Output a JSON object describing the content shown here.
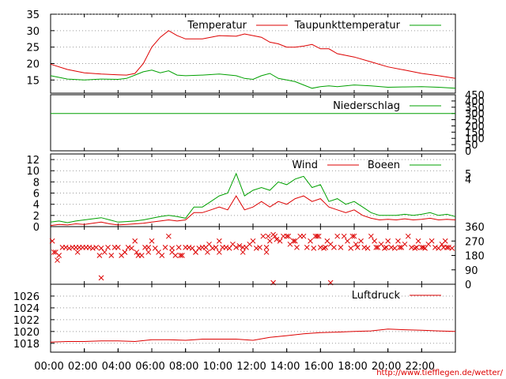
{
  "source_url": "http://www.tiefflegen.de/wetter/",
  "time_ticks": [
    "00:00",
    "02:00",
    "04:00",
    "06:00",
    "08:00",
    "10:00",
    "12:00",
    "14:00",
    "16:00",
    "18:00",
    "20:00",
    "22:00"
  ],
  "colors": {
    "red": "#dd0000",
    "green": "#00a000",
    "grid": "#999999",
    "axis": "#000000"
  },
  "chart_data": [
    {
      "type": "line",
      "panel": "temperature",
      "ylim": [
        11,
        35
      ],
      "yticks": [
        15,
        20,
        25,
        30,
        35
      ],
      "xlim": [
        0,
        24
      ],
      "legend_placement": "top-right",
      "series": [
        {
          "name": "Temperatur",
          "color": "red",
          "x": [
            0,
            1,
            2,
            3,
            4,
            4.5,
            5,
            5.5,
            6,
            6.5,
            7,
            7.5,
            8,
            9,
            10,
            11,
            11.5,
            12,
            12.5,
            13,
            13.5,
            14,
            14.5,
            15,
            15.5,
            16,
            16.5,
            17,
            18,
            19,
            20,
            21,
            22,
            23,
            24
          ],
          "y": [
            19.8,
            18.2,
            17.2,
            16.8,
            16.6,
            16.5,
            17,
            20,
            25,
            28,
            30,
            28.5,
            27.5,
            27.5,
            28.5,
            28.3,
            29,
            28.5,
            28,
            26.5,
            26,
            25,
            25,
            25.3,
            25.8,
            24.5,
            24.5,
            23,
            22,
            20.5,
            19,
            18,
            17,
            16.3,
            15.5
          ]
        },
        {
          "name": "Taupunkttemperatur",
          "color": "green",
          "x": [
            0,
            1,
            2,
            3,
            4,
            4.5,
            5,
            5.5,
            6,
            6.5,
            7,
            7.5,
            8,
            9,
            10,
            11,
            11.5,
            12,
            12.5,
            13,
            13.5,
            14,
            14.5,
            15,
            15.5,
            16,
            16.5,
            17,
            18,
            19,
            20,
            21,
            22,
            23,
            24
          ],
          "y": [
            16.3,
            15.3,
            15,
            15.3,
            15.2,
            15.5,
            16.5,
            17.5,
            18,
            17.2,
            17.8,
            16.5,
            16.3,
            16.5,
            16.8,
            16.3,
            15.5,
            15.2,
            16.3,
            17,
            15.5,
            15,
            14.5,
            13.5,
            12.5,
            13,
            13.2,
            13,
            13.5,
            13.2,
            12.8,
            12.9,
            13,
            12.8,
            12.5
          ]
        }
      ]
    },
    {
      "type": "line",
      "panel": "precipitation",
      "ylim": [
        0,
        450
      ],
      "yticks": [
        0,
        50,
        100,
        150,
        200,
        250,
        300,
        350,
        400,
        450
      ],
      "xlim": [
        0,
        24
      ],
      "legend_placement": "top-right",
      "series": [
        {
          "name": "Niederschlag",
          "color": "green",
          "x": [
            0,
            24
          ],
          "y": [
            300,
            300
          ]
        }
      ]
    },
    {
      "type": "line",
      "panel": "wind",
      "ylim": [
        0,
        13
      ],
      "yticks": [
        0,
        2,
        4,
        6,
        8,
        10,
        12
      ],
      "right_ticks": [
        4,
        5
      ],
      "xlim": [
        0,
        24
      ],
      "legend_placement": "top-right",
      "series": [
        {
          "name": "Wind",
          "color": "red",
          "x": [
            0,
            0.5,
            1,
            1.5,
            2,
            2.5,
            3,
            3.5,
            4,
            4.5,
            5,
            5.5,
            6,
            6.5,
            7,
            7.5,
            8,
            8.5,
            9,
            9.5,
            10,
            10.5,
            11,
            11.5,
            12,
            12.5,
            13,
            13.5,
            14,
            14.5,
            15,
            15.5,
            16,
            16.5,
            17,
            17.5,
            18,
            18.5,
            19,
            19.5,
            20,
            20.5,
            21,
            21.5,
            22,
            22.5,
            23,
            23.5,
            24
          ],
          "y": [
            0.2,
            0.4,
            0.3,
            0.5,
            0.4,
            0.6,
            0.8,
            0.5,
            0.3,
            0.4,
            0.5,
            0.6,
            0.8,
            1.0,
            1.2,
            1.0,
            1.2,
            2.5,
            2.5,
            3.0,
            3.5,
            3.0,
            5.5,
            3.0,
            3.5,
            4.5,
            3.5,
            4.5,
            4.0,
            5.0,
            5.5,
            4.5,
            5.0,
            3.5,
            3.0,
            2.5,
            3.0,
            2.0,
            1.5,
            1.2,
            1.3,
            1.2,
            1.4,
            1.2,
            1.3,
            1.5,
            1.2,
            1.3,
            1.2
          ]
        },
        {
          "name": "Boeen",
          "color": "green",
          "x": [
            0,
            0.5,
            1,
            1.5,
            2,
            2.5,
            3,
            3.5,
            4,
            4.5,
            5,
            5.5,
            6,
            6.5,
            7,
            7.5,
            8,
            8.5,
            9,
            9.5,
            10,
            10.5,
            11,
            11.5,
            12,
            12.5,
            13,
            13.5,
            14,
            14.5,
            15,
            15.5,
            16,
            16.5,
            17,
            17.5,
            18,
            18.5,
            19,
            19.5,
            20,
            20.5,
            21,
            21.5,
            22,
            22.5,
            23,
            23.5,
            24
          ],
          "y": [
            0.8,
            1.0,
            0.7,
            1.0,
            1.2,
            1.4,
            1.6,
            1.2,
            0.8,
            0.9,
            1.0,
            1.2,
            1.5,
            1.8,
            2.0,
            1.8,
            1.5,
            3.5,
            3.5,
            4.5,
            5.5,
            6.0,
            9.5,
            5.5,
            6.5,
            7.0,
            6.5,
            8.0,
            7.5,
            8.5,
            9.0,
            7.0,
            7.5,
            4.5,
            5.0,
            4.0,
            4.5,
            3.5,
            2.5,
            2.0,
            2.0,
            2.0,
            2.2,
            2.0,
            2.2,
            2.5,
            2.0,
            2.2,
            1.8
          ]
        }
      ]
    },
    {
      "type": "scatter",
      "panel": "wind-direction",
      "ylim": [
        0,
        360
      ],
      "yticks": [
        0,
        90,
        180,
        270,
        360
      ],
      "xlim": [
        0,
        24
      ],
      "color": "red",
      "x": [
        0.1,
        0.3,
        0.5,
        0.7,
        0.9,
        1.1,
        1.3,
        1.5,
        1.7,
        1.9,
        2.1,
        2.3,
        2.5,
        2.7,
        2.9,
        3.0,
        3.2,
        3.4,
        3.6,
        3.8,
        4.0,
        4.2,
        4.4,
        4.6,
        4.8,
        5.0,
        5.2,
        5.4,
        5.6,
        5.8,
        6.0,
        6.2,
        6.4,
        6.6,
        6.8,
        7.0,
        7.2,
        7.4,
        7.6,
        7.8,
        8.0,
        8.2,
        8.4,
        8.6,
        8.8,
        9.0,
        9.2,
        9.4,
        9.6,
        9.8,
        10.0,
        10.2,
        10.4,
        10.6,
        10.8,
        11.0,
        11.2,
        11.4,
        11.6,
        11.8,
        12.0,
        12.2,
        12.4,
        12.6,
        12.8,
        13.0,
        13.2,
        13.4,
        13.6,
        13.8,
        14.0,
        14.2,
        14.4,
        14.6,
        14.8,
        15.0,
        15.2,
        15.4,
        15.6,
        15.8,
        16.0,
        16.2,
        16.4,
        16.6,
        16.8,
        17.0,
        17.2,
        17.4,
        17.6,
        17.8,
        18.0,
        18.2,
        18.4,
        18.6,
        18.8,
        19.0,
        19.2,
        19.4,
        19.6,
        19.8,
        20.0,
        20.2,
        20.4,
        20.6,
        20.8,
        21.0,
        21.2,
        21.4,
        21.6,
        21.8,
        22.0,
        22.2,
        22.4,
        22.6,
        22.8,
        23.0,
        23.2,
        23.4,
        23.6,
        23.8,
        0.2,
        0.4,
        1.6,
        3.0,
        4.4,
        5.8,
        7.2,
        8.6,
        10.0,
        11.4,
        12.8,
        13.2,
        14.1,
        15.7,
        16.6,
        17.9,
        19.3,
        20.7,
        22.1,
        23.5,
        13.3,
        15.9,
        12.9,
        14.5,
        16.3,
        18.1,
        19.9,
        21.7,
        23.3,
        5.1,
        7.7,
        9.3
      ],
      "y": [
        270,
        200,
        180,
        230,
        230,
        225,
        230,
        230,
        230,
        230,
        230,
        230,
        225,
        230,
        180,
        225,
        200,
        230,
        180,
        230,
        230,
        180,
        200,
        230,
        225,
        270,
        180,
        180,
        230,
        230,
        270,
        225,
        200,
        180,
        230,
        300,
        225,
        180,
        230,
        180,
        230,
        230,
        225,
        200,
        225,
        230,
        230,
        250,
        225,
        230,
        270,
        230,
        230,
        225,
        250,
        230,
        240,
        230,
        230,
        250,
        270,
        225,
        230,
        300,
        230,
        270,
        310,
        280,
        270,
        300,
        300,
        250,
        270,
        230,
        300,
        300,
        230,
        270,
        225,
        300,
        230,
        225,
        270,
        250,
        230,
        300,
        230,
        300,
        270,
        225,
        300,
        230,
        270,
        230,
        225,
        300,
        270,
        230,
        250,
        225,
        270,
        230,
        225,
        270,
        230,
        250,
        300,
        230,
        225,
        270,
        230,
        225,
        250,
        270,
        230,
        225,
        250,
        270,
        230,
        225,
        200,
        150,
        200,
        40,
        200,
        200,
        200,
        200,
        200,
        200,
        200,
        10,
        300,
        300,
        10,
        300,
        230,
        230,
        230,
        230,
        300,
        300,
        300,
        270,
        230,
        250,
        230,
        230,
        230,
        200,
        180,
        200
      ]
    },
    {
      "type": "line",
      "panel": "pressure",
      "ylim": [
        1016.5,
        1028
      ],
      "yticks": [
        1018,
        1020,
        1022,
        1024,
        1026
      ],
      "xlim": [
        0,
        24
      ],
      "legend_placement": "top-right",
      "series": [
        {
          "name": "Luftdruck",
          "color": "red",
          "x": [
            0,
            1,
            2,
            3,
            4,
            5,
            6,
            7,
            8,
            9,
            10,
            11,
            12,
            13,
            14,
            15,
            16,
            17,
            18,
            19,
            20,
            21,
            22,
            23,
            24
          ],
          "y": [
            1018.2,
            1018.3,
            1018.3,
            1018.4,
            1018.4,
            1018.3,
            1018.6,
            1018.6,
            1018.5,
            1018.7,
            1018.7,
            1018.7,
            1018.5,
            1019.0,
            1019.3,
            1019.6,
            1019.8,
            1019.9,
            1020.0,
            1020.1,
            1020.4,
            1020.3,
            1020.2,
            1020.1,
            1020.0
          ]
        }
      ]
    }
  ]
}
